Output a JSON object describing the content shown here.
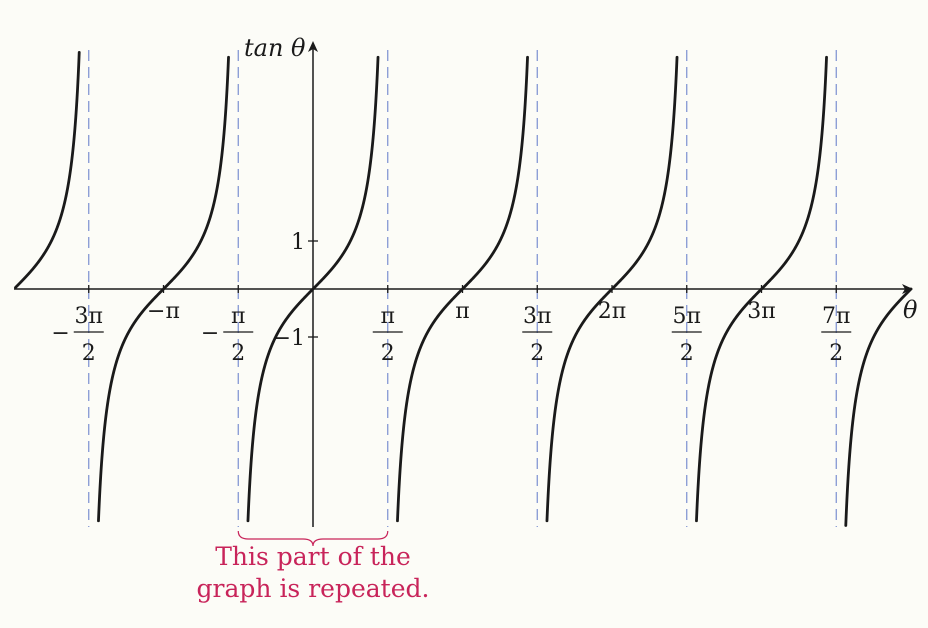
{
  "chart_data": {
    "type": "line",
    "title": "",
    "xlabel": "θ",
    "ylabel": "tan θ",
    "xlim_over_pi": [
      -1.99,
      4.0
    ],
    "ylim": [
      -5.0,
      5.0
    ],
    "grid": false,
    "legend": "none",
    "series": [
      {
        "function": "tan(θ)"
      }
    ],
    "asymptotes_over_pi": [
      -1.5,
      -0.5,
      0.5,
      1.5,
      2.5,
      3.5
    ],
    "x_ticks": [
      {
        "value_over_pi": -1.5,
        "sign": "−",
        "num": "3π",
        "den": "2",
        "fraction": true
      },
      {
        "value_over_pi": -1.0,
        "label": "−π",
        "fraction": false
      },
      {
        "value_over_pi": -0.5,
        "sign": "−",
        "num": "π",
        "den": "2",
        "fraction": true
      },
      {
        "value_over_pi": 0.5,
        "sign": "",
        "num": "π",
        "den": "2",
        "fraction": true
      },
      {
        "value_over_pi": 1.0,
        "label": "π",
        "fraction": false
      },
      {
        "value_over_pi": 1.5,
        "sign": "",
        "num": "3π",
        "den": "2",
        "fraction": true
      },
      {
        "value_over_pi": 2.0,
        "label": "2π",
        "fraction": false
      },
      {
        "value_over_pi": 2.5,
        "sign": "",
        "num": "5π",
        "den": "2",
        "fraction": true
      },
      {
        "value_over_pi": 3.0,
        "label": "3π",
        "fraction": false
      },
      {
        "value_over_pi": 3.5,
        "sign": "",
        "num": "7π",
        "den": "2",
        "fraction": true
      }
    ],
    "y_ticks": [
      {
        "value": 1,
        "label": "1"
      },
      {
        "value": -1,
        "label": "−1"
      }
    ],
    "annotation": {
      "line1": "This part of the",
      "line2": "graph is repeated.",
      "from_over_pi": -0.5,
      "to_over_pi": 0.5,
      "color": "#c8245a"
    },
    "colors": {
      "curve": "#1a1a1a",
      "asymptote": "#7b8fd0",
      "axis": "#1a1a1a",
      "background": "#fcfcf7"
    }
  }
}
